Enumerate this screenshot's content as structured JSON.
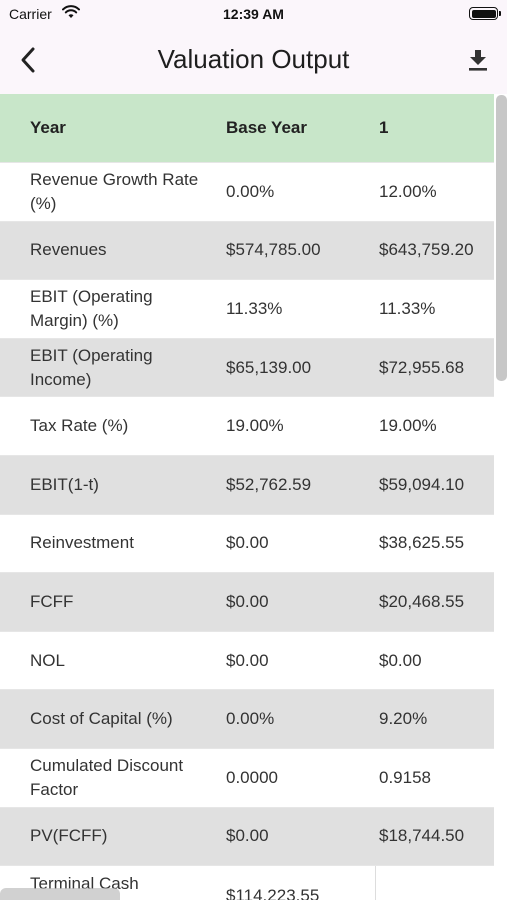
{
  "status_bar": {
    "carrier": "Carrier",
    "time": "12:39 AM"
  },
  "app_bar": {
    "title": "Valuation Output"
  },
  "table": {
    "headers": [
      "Year",
      "Base Year",
      "1"
    ],
    "rows": [
      {
        "label": "Revenue Growth Rate (%)",
        "base": "0.00%",
        "y1": "12.00%"
      },
      {
        "label": "Revenues",
        "base": "$574,785.00",
        "y1": "$643,759.20"
      },
      {
        "label": "EBIT (Operating Margin) (%)",
        "base": "11.33%",
        "y1": "11.33%"
      },
      {
        "label": "EBIT (Operating Income)",
        "base": "$65,139.00",
        "y1": "$72,955.68"
      },
      {
        "label": "Tax Rate (%)",
        "base": "19.00%",
        "y1": "19.00%"
      },
      {
        "label": "EBIT(1-t)",
        "base": "$52,762.59",
        "y1": "$59,094.10"
      },
      {
        "label": "Reinvestment",
        "base": "$0.00",
        "y1": "$38,625.55"
      },
      {
        "label": "FCFF",
        "base": "$0.00",
        "y1": "$20,468.55"
      },
      {
        "label": "NOL",
        "base": "$0.00",
        "y1": "$0.00"
      },
      {
        "label": "Cost of Capital (%)",
        "base": "0.00%",
        "y1": "9.20%"
      },
      {
        "label": "Cumulated Discount Factor",
        "base": "0.0000",
        "y1": "0.9158"
      },
      {
        "label": "PV(FCFF)",
        "base": "$0.00",
        "y1": "$18,744.50"
      },
      {
        "label": "Terminal Cash",
        "base": "$114,223.55",
        "y1": ""
      }
    ]
  },
  "colors": {
    "header_bg": "#c8e6c9",
    "shaded_row": "#e0e0e0",
    "app_bar_bg": "#fbf6fb"
  },
  "icons": {
    "back": "chevron-left-icon",
    "download": "download-icon"
  }
}
